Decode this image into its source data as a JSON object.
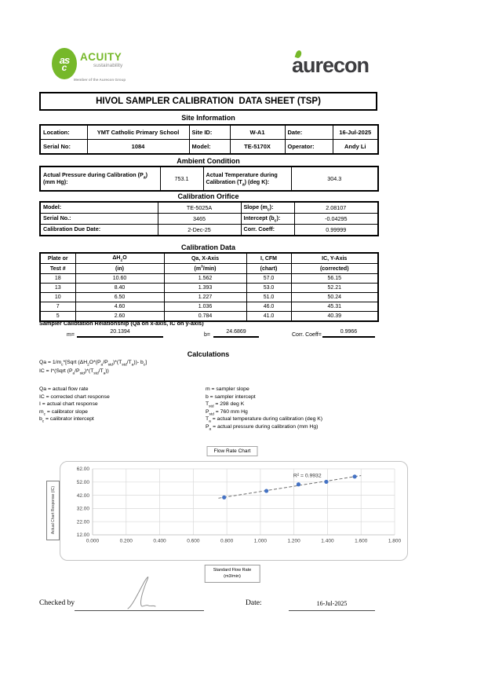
{
  "header": {
    "acuity": {
      "monogram_top": "as",
      "monogram_bottom": "c",
      "name": "ACUITY",
      "subtitle": "sustainability",
      "tagline": "Member of the Aurecon Group"
    },
    "aurecon": {
      "name": "aurecon"
    }
  },
  "title": "HIVOL SAMPLER CALIBRATION  DATA SHEET (TSP)",
  "site_info": {
    "heading": "Site Information",
    "row1": {
      "l1": "Location:",
      "v1": "YMT Catholic Primary School",
      "l2": "Site ID:",
      "v2": "W-A1",
      "l3": "Date:",
      "v3": "16-Jul-2025"
    },
    "row2": {
      "l1": "Serial No:",
      "v1": "1084",
      "l2": "Model:",
      "v2": "TE-5170X",
      "l3": "Operator:",
      "v3": "Andy Li"
    }
  },
  "ambient": {
    "heading": "Ambient Condition",
    "pressure_label": "Actual Pressure during Calibration (P<sub>a</sub>) (mm Hg):",
    "pressure_value": "753.1",
    "temp_label": "Actual Temperature during Calibration (T<sub>a</sub>) (deg K):",
    "temp_value": "304.3"
  },
  "orifice": {
    "heading": "Calibration Orifice",
    "rows": [
      {
        "l1": "Model:",
        "v1": "TE-5025A",
        "l2": "Slope (m<sub>c</sub>):",
        "v2": "2.08107"
      },
      {
        "l1": "Serial No.:",
        "v1": "3465",
        "l2": "Intercept (b<sub>c</sub>):",
        "v2": "-0.04295"
      },
      {
        "l1": "Calibration Due Date:",
        "v1": "2-Dec-25",
        "l2": "Corr. Coeff:",
        "v2": "0.99999"
      }
    ]
  },
  "cal_data": {
    "heading": "Calibration Data",
    "col_headers_top": [
      "Plate or",
      "ΔH<sub>2</sub>O",
      "Qa, X-Axis",
      "I, CFM",
      "IC, Y-Axis"
    ],
    "col_headers_bottom": [
      "Test #",
      "(in)",
      "(m<sup>3</sup>/min)",
      "(chart)",
      "(corrected)"
    ],
    "rows": [
      [
        "18",
        "10.60",
        "1.562",
        "57.0",
        "56.15"
      ],
      [
        "13",
        "8.40",
        "1.393",
        "53.0",
        "52.21"
      ],
      [
        "10",
        "6.50",
        "1.227",
        "51.0",
        "50.24"
      ],
      [
        "7",
        "4.60",
        "1.036",
        "46.0",
        "45.31"
      ],
      [
        "5",
        "2.60",
        "0.784",
        "41.0",
        "40.39"
      ]
    ]
  },
  "relationship": {
    "heading": "Sampler Calibtation Relationship (Qa on x-axis, IC on y-axis)",
    "m_label": "m=",
    "m_value": "20.1394",
    "b_label": "b=",
    "b_value": "24.6869",
    "corr_label": "Corr. Coeff=",
    "corr_value": "0.9966"
  },
  "calculations": {
    "heading": "Calculations",
    "formula1": "Qa = 1/m<sub>c</sub>*[Sqrt (ΔH<sub>2</sub>O*(P<sub>a</sub>/P<sub>std</sub>)*(T<sub>std</sub>/T<sub>a</sub>))- b<sub>c</sub>]",
    "formula2": "IC = I*(Sqrt (P<sub>a</sub>/P<sub>std</sub>)*(T<sub>std</sub>/T<sub>a</sub>))",
    "defs_left": [
      "Qa = actual flow rate",
      "IC = corrected chart response",
      "I = actual chart response",
      "m<sub>c</sub>  = calibrator slope",
      "b<sub>c</sub>  = calibrator intercept"
    ],
    "defs_right": [
      "m = sampler slope",
      "b  = sampler intercept",
      "T<sub>std</sub> = 298 deg K",
      "P<sub>std</sub> = 760 mm Hg",
      "T<sub>a</sub> = actual temperature during calibration (deg K)",
      "P<sub>a</sub> = actual pressure during calibration (mm Hg)"
    ]
  },
  "chart_data": {
    "type": "scatter",
    "title": "Flow Rate Chart",
    "ylabel": "Actual Chart Response (IC)",
    "xlabel_lines": [
      "Standard Flow Rate",
      "(m3/min)"
    ],
    "x": [
      0.784,
      1.036,
      1.227,
      1.393,
      1.562
    ],
    "y": [
      40.39,
      45.31,
      50.24,
      52.21,
      56.15
    ],
    "xlim": [
      0.0,
      1.8
    ],
    "ylim": [
      12.0,
      62.0
    ],
    "x_ticks": [
      0.0,
      0.2,
      0.4,
      0.6,
      0.8,
      1.0,
      1.2,
      1.4,
      1.6,
      1.8
    ],
    "y_ticks": [
      12,
      22,
      32,
      42,
      52,
      62
    ],
    "x_tick_decimals": 3,
    "y_tick_decimals": 2,
    "grid": true,
    "legend": "none",
    "trendline": {
      "slope": 20.1394,
      "intercept": 24.6869,
      "x_start": 0.75,
      "x_end": 1.6,
      "style": "dashed",
      "label": "R² = 0.9932",
      "label_x": 1.28,
      "label_y": 57.0
    },
    "point_color": "#4472c4",
    "grid_color": "#d9d9d9",
    "axis_color": "#bfbfbf",
    "trendline_color": "#6e6e6e"
  },
  "footer": {
    "checked_label": "Checked by",
    "date_label": "Date:",
    "date_value": "16-Jul-2025"
  },
  "colors": {
    "accent_green": "#76b82a",
    "aurecon_dark": "#3d3d40",
    "chart_point": "#4472c4"
  }
}
